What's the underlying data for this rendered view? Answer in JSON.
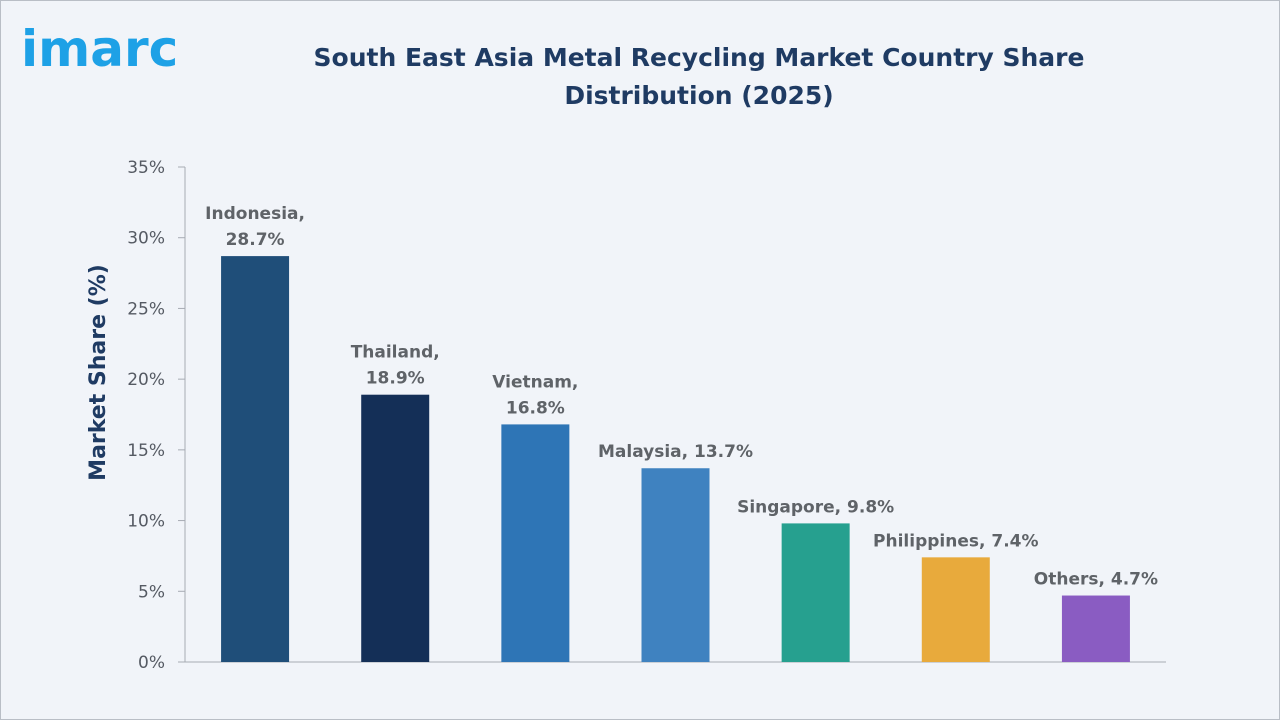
{
  "brand": {
    "logo_text": "imarc",
    "logo_color": "#1ea1e6"
  },
  "chart_data": {
    "type": "bar",
    "title": "South East Asia Metal Recycling Market Country Share Distribution (2025)",
    "xlabel": "",
    "ylabel": "Market Share (%)",
    "ylim": [
      0,
      35
    ],
    "yticks": [
      "0%",
      "5%",
      "10%",
      "15%",
      "20%",
      "25%",
      "30%",
      "35%"
    ],
    "ytick_values": [
      0,
      5,
      10,
      15,
      20,
      25,
      30,
      35
    ],
    "grid": false,
    "categories": [
      "Indonesia",
      "Thailand",
      "Vietnam",
      "Malaysia",
      "Singapore",
      "Philippines",
      "Others"
    ],
    "values": [
      28.7,
      18.9,
      16.8,
      13.7,
      9.8,
      7.4,
      4.7
    ],
    "data_labels": [
      [
        "Indonesia,",
        "28.7%"
      ],
      [
        "Thailand,",
        "18.9%"
      ],
      [
        "Vietnam,",
        "16.8%"
      ],
      [
        "Malaysia, 13.7%"
      ],
      [
        "Singapore, 9.8%"
      ],
      [
        "Philippines, 7.4%"
      ],
      [
        "Others, 4.7%"
      ]
    ],
    "colors": [
      "#1f4e79",
      "#142f57",
      "#2e75b6",
      "#3f82c0",
      "#26a08f",
      "#e8aa3c",
      "#8a5cc2"
    ]
  }
}
